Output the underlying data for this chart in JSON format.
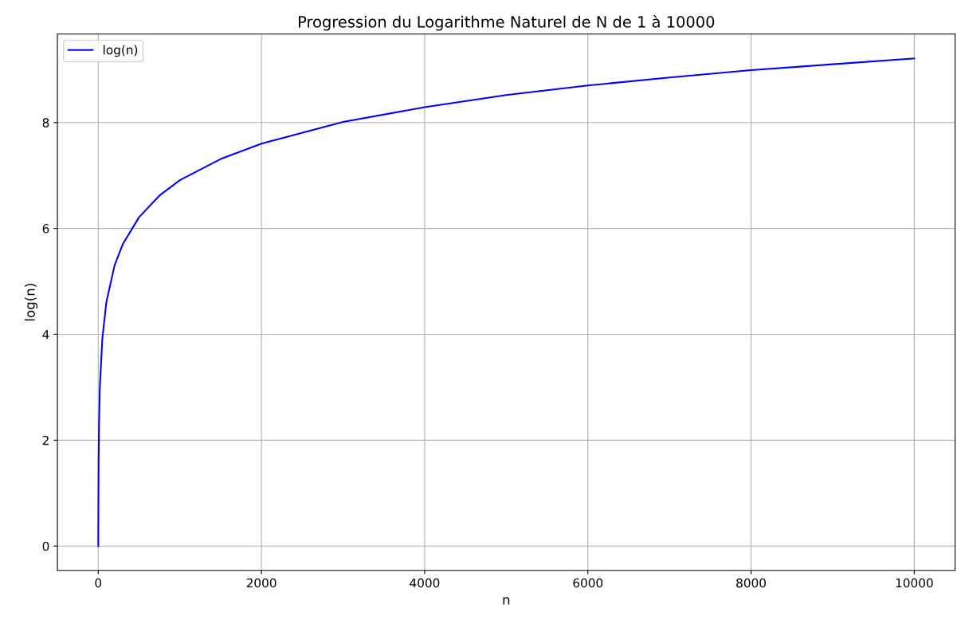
{
  "chart_data": {
    "type": "line",
    "title": "Progression du Logarithme Naturel de N de 1 à 10000",
    "xlabel": "n",
    "ylabel": "log(n)",
    "x": [
      1,
      2,
      5,
      10,
      20,
      50,
      100,
      200,
      300,
      500,
      750,
      1000,
      1500,
      2000,
      3000,
      4000,
      5000,
      6000,
      7000,
      8000,
      9000,
      10000
    ],
    "series": [
      {
        "name": "log(n)",
        "color": "#0000ff",
        "values": [
          0,
          0.69,
          1.61,
          2.3,
          3.0,
          3.91,
          4.61,
          5.3,
          5.7,
          6.21,
          6.62,
          6.91,
          7.31,
          7.6,
          8.01,
          8.29,
          8.52,
          8.7,
          8.85,
          8.99,
          9.1,
          9.21
        ]
      }
    ],
    "xlim": [
      -500,
      10500
    ],
    "ylim": [
      -0.46,
      9.67
    ],
    "xticks": [
      0,
      2000,
      4000,
      6000,
      8000,
      10000
    ],
    "yticks": [
      0,
      2,
      4,
      6,
      8
    ],
    "grid": true,
    "legend": "top left",
    "marker": "none",
    "line_style": "solid"
  }
}
